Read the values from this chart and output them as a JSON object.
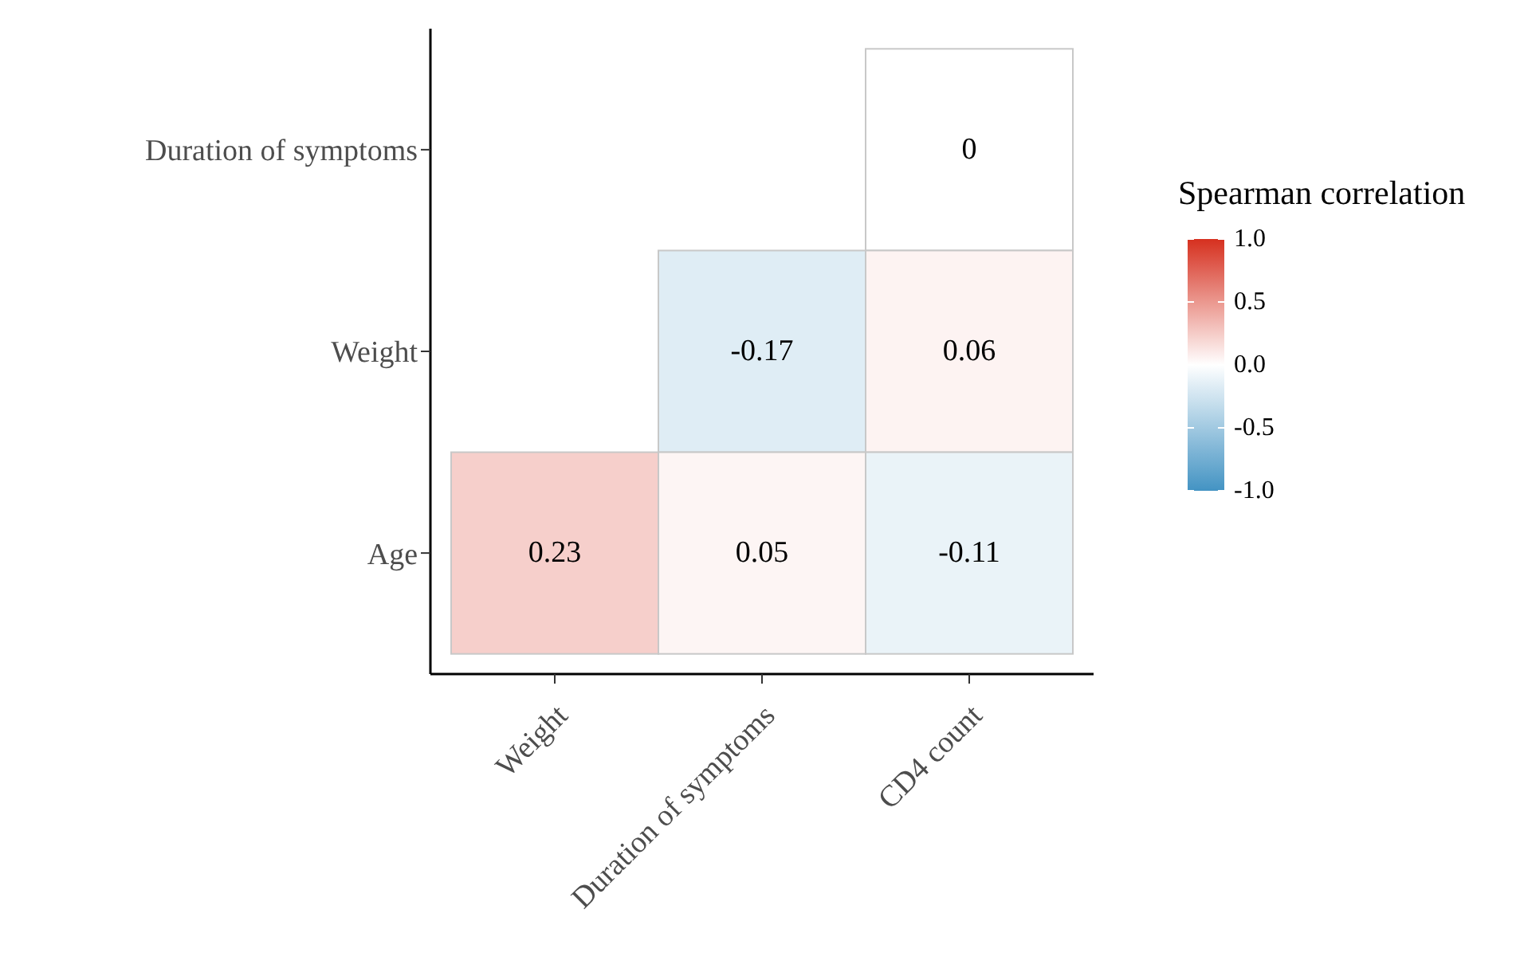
{
  "chart_data": {
    "type": "heatmap",
    "categories": [
      "Weight",
      "Duration of symptoms",
      "CD4 count"
    ],
    "y_categories": [
      "Duration of symptoms",
      "Weight",
      "Age"
    ],
    "cells": [
      [
        null,
        null,
        0
      ],
      [
        null,
        -0.17,
        0.06
      ],
      [
        0.23,
        0.05,
        -0.11
      ]
    ],
    "data_labels": true,
    "clabel": "Spearman correlation",
    "clim": [
      -1,
      1
    ],
    "cticks": [
      {
        "value": -1,
        "label": "-1.0"
      },
      {
        "value": -0.5,
        "label": "-0.5"
      },
      {
        "value": 0,
        "label": "0.0"
      },
      {
        "value": 0.5,
        "label": "0.5"
      },
      {
        "value": 1,
        "label": "1.0"
      }
    ]
  }
}
